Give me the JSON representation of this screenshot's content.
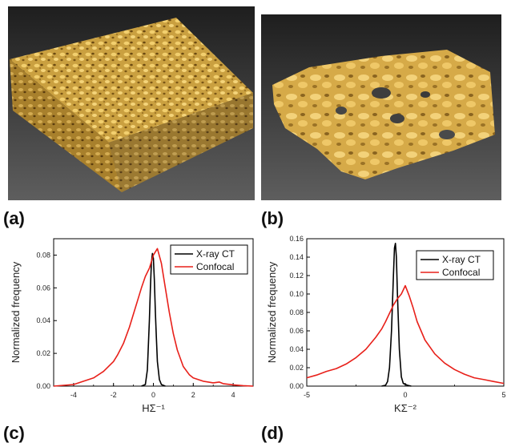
{
  "labels": {
    "a": "(a)",
    "b": "(b)",
    "c": "(c)",
    "d": "(d)"
  },
  "colors": {
    "xray": "#000000",
    "confocal": "#e8201a",
    "gold": "#e0b246",
    "bg_dark": "#3a3a3a"
  },
  "chart_data": [
    {
      "type": "line",
      "panel": "(c)",
      "title": "",
      "xlabel": "HΣ⁻¹",
      "ylabel": "Normalized frequency",
      "xlim": [
        -5,
        5
      ],
      "ylim": [
        0,
        0.09
      ],
      "xticks": [
        -4,
        -2,
        0,
        2,
        4
      ],
      "yticks": [
        0.0,
        0.02,
        0.04,
        0.06,
        0.08
      ],
      "xtick_labels": [
        "-4",
        "-2",
        "0",
        "2",
        "4"
      ],
      "ytick_labels": [
        "0.00",
        "0.02",
        "0.04",
        "0.06",
        "0.08"
      ],
      "legend_position": "top-right",
      "series": [
        {
          "name": "X-ray CT",
          "color": "#000000",
          "x": [
            -0.6,
            -0.4,
            -0.3,
            -0.2,
            -0.15,
            -0.1,
            -0.05,
            0.0,
            0.05,
            0.1,
            0.15,
            0.2,
            0.3,
            0.4,
            0.6
          ],
          "y": [
            0.0,
            0.001,
            0.01,
            0.04,
            0.06,
            0.075,
            0.081,
            0.078,
            0.065,
            0.045,
            0.03,
            0.015,
            0.004,
            0.001,
            0.0
          ]
        },
        {
          "name": "Confocal",
          "color": "#e8201a",
          "x": [
            -5,
            -4.5,
            -4,
            -3.5,
            -3,
            -2.5,
            -2,
            -1.8,
            -1.5,
            -1.2,
            -1,
            -0.8,
            -0.6,
            -0.4,
            -0.2,
            0,
            0.2,
            0.4,
            0.6,
            0.8,
            1,
            1.2,
            1.5,
            1.8,
            2,
            2.5,
            3,
            3.3,
            3.5,
            4,
            4.5,
            5
          ],
          "y": [
            0,
            0.0005,
            0.001,
            0.003,
            0.005,
            0.009,
            0.015,
            0.019,
            0.026,
            0.036,
            0.044,
            0.052,
            0.06,
            0.067,
            0.072,
            0.08,
            0.084,
            0.075,
            0.06,
            0.045,
            0.032,
            0.022,
            0.012,
            0.007,
            0.005,
            0.003,
            0.002,
            0.0025,
            0.0015,
            0.0008,
            0.0003,
            0.0
          ]
        }
      ]
    },
    {
      "type": "line",
      "panel": "(d)",
      "title": "",
      "xlabel": "KΣ⁻²",
      "ylabel": "Normalized frequency",
      "xlim": [
        -5,
        5
      ],
      "ylim": [
        0,
        0.16
      ],
      "xticks": [
        -5,
        0,
        5
      ],
      "yticks": [
        0.0,
        0.02,
        0.04,
        0.06,
        0.08,
        0.1,
        0.12,
        0.14,
        0.16
      ],
      "xtick_labels": [
        "-5",
        "0",
        "5"
      ],
      "ytick_labels": [
        "0.00",
        "0.02",
        "0.04",
        "0.06",
        "0.08",
        "0.10",
        "0.12",
        "0.14",
        "0.16"
      ],
      "legend_position": "top-right",
      "series": [
        {
          "name": "X-ray CT",
          "color": "#000000",
          "x": [
            -1.2,
            -1.0,
            -0.9,
            -0.8,
            -0.7,
            -0.6,
            -0.55,
            -0.5,
            -0.45,
            -0.4,
            -0.3,
            -0.2,
            -0.1,
            0.1,
            0.3
          ],
          "y": [
            0.0,
            0.001,
            0.005,
            0.02,
            0.06,
            0.12,
            0.15,
            0.155,
            0.14,
            0.1,
            0.04,
            0.01,
            0.003,
            0.001,
            0.0
          ]
        },
        {
          "name": "Confocal",
          "color": "#e8201a",
          "x": [
            -5,
            -4.5,
            -4,
            -3.5,
            -3,
            -2.5,
            -2,
            -1.5,
            -1.2,
            -1,
            -0.8,
            -0.6,
            -0.4,
            -0.2,
            0,
            0.2,
            0.4,
            0.6,
            0.8,
            1,
            1.5,
            2,
            2.5,
            3,
            3.5,
            4,
            4.5,
            5
          ],
          "y": [
            0.009,
            0.012,
            0.016,
            0.019,
            0.024,
            0.031,
            0.04,
            0.053,
            0.062,
            0.07,
            0.079,
            0.088,
            0.095,
            0.1,
            0.109,
            0.098,
            0.085,
            0.07,
            0.06,
            0.05,
            0.035,
            0.025,
            0.018,
            0.013,
            0.009,
            0.007,
            0.005,
            0.003
          ]
        }
      ]
    }
  ]
}
